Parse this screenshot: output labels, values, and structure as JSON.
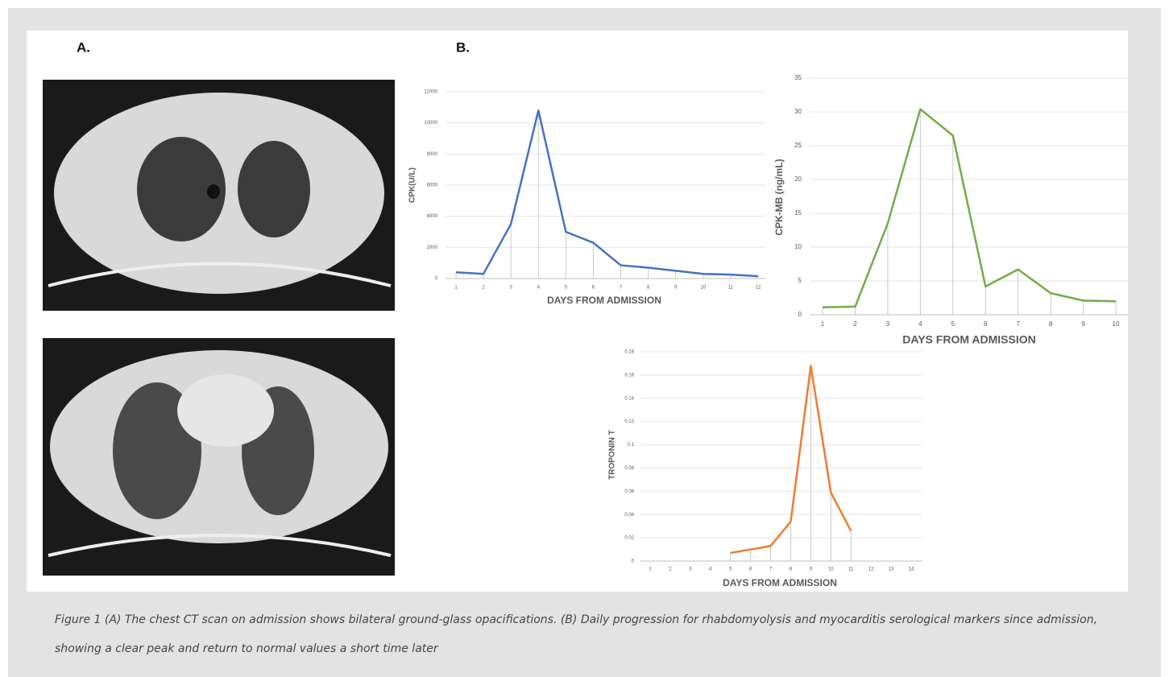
{
  "figure": {
    "panel_a": "A.",
    "panel_b": "B."
  },
  "caption": "Figure 1 (A) The chest CT scan on admission shows bilateral ground-glass opacifications. (B) Daily progression for rhabdomyolysis and myocarditis serological markers since admission, showing a clear peak and return to normal values a short time later",
  "chart_data": [
    {
      "type": "line",
      "x_label": "DAYS FROM ADMISSION",
      "y_label": "CPK(U/L)",
      "categories": [
        "1",
        "2",
        "3",
        "4",
        "5",
        "6",
        "7",
        "8",
        "9",
        "10",
        "11",
        "12"
      ],
      "values": [
        400,
        300,
        3500,
        10800,
        3000,
        2300,
        850,
        700,
        500,
        300,
        250,
        150
      ],
      "color": "#4472c4",
      "ylim": [
        0,
        12000
      ],
      "yticks": [
        0,
        2000,
        4000,
        6000,
        8000,
        10000,
        12000
      ],
      "grid": true
    },
    {
      "type": "line",
      "x_label": "DAYS FROM ADMISSION",
      "y_label": "CPK-MB (ng/mL)",
      "categories": [
        "1",
        "2",
        "3",
        "4",
        "5",
        "6",
        "7",
        "8",
        "9",
        "10"
      ],
      "values": [
        1.1,
        1.2,
        13.5,
        30.4,
        26.5,
        4.2,
        6.7,
        3.2,
        2.1,
        2.0
      ],
      "color": "#70ad47",
      "ylim": [
        0,
        35
      ],
      "yticks": [
        0,
        5,
        10,
        15,
        20,
        25,
        30,
        35
      ],
      "grid": true
    },
    {
      "type": "line",
      "x_label": "DAYS FROM ADMISSION",
      "y_label": "TROPONIN T",
      "categories": [
        "1",
        "2",
        "3",
        "4",
        "5",
        "6",
        "7",
        "8",
        "9",
        "10",
        "11",
        "12",
        "13",
        "14"
      ],
      "values": [
        null,
        null,
        null,
        null,
        0.007,
        0.01,
        0.013,
        0.034,
        0.168,
        0.059,
        0.026,
        null,
        null,
        null
      ],
      "color": "#ed7d31",
      "ylim": [
        0,
        0.18
      ],
      "yticks": [
        0,
        0.02,
        0.04,
        0.06,
        0.08,
        0.1,
        0.12,
        0.14,
        0.16,
        0.18
      ],
      "grid": true
    }
  ]
}
